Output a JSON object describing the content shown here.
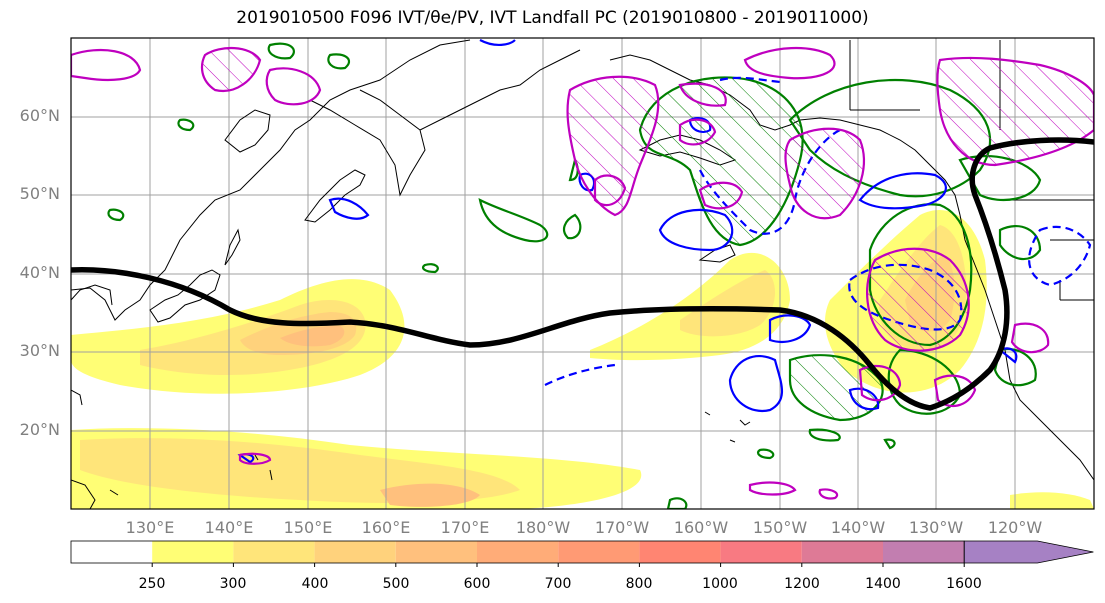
{
  "title": "2019010500 F096 IVT/θe/PV, IVT Landfall PC (2019010800 - 2019011000)",
  "map": {
    "lat_labels": [
      "60°N",
      "50°N",
      "40°N",
      "30°N",
      "20°N"
    ],
    "lon_labels": [
      "130°E",
      "140°E",
      "150°E",
      "160°E",
      "170°E",
      "180°W",
      "170°W",
      "160°W",
      "150°W",
      "140°W",
      "130°W",
      "120°W"
    ],
    "contour_colors": {
      "ivt_outline": "#000000",
      "pv_positive": "#0000ff",
      "theta_e": "#008000",
      "pv_hatched": "#bf00bf"
    }
  },
  "colorbar": {
    "levels": [
      "250",
      "300",
      "400",
      "500",
      "600",
      "700",
      "800",
      "1000",
      "1200",
      "1400",
      "1600"
    ],
    "colors": [
      "#ffffff",
      "#fffe75",
      "#ffe57a",
      "#ffd27c",
      "#ffc07d",
      "#ffac78",
      "#ff9a74",
      "#ff8572",
      "#f87a82",
      "#de7a96",
      "#c27eb0",
      "#a681c4"
    ]
  }
}
